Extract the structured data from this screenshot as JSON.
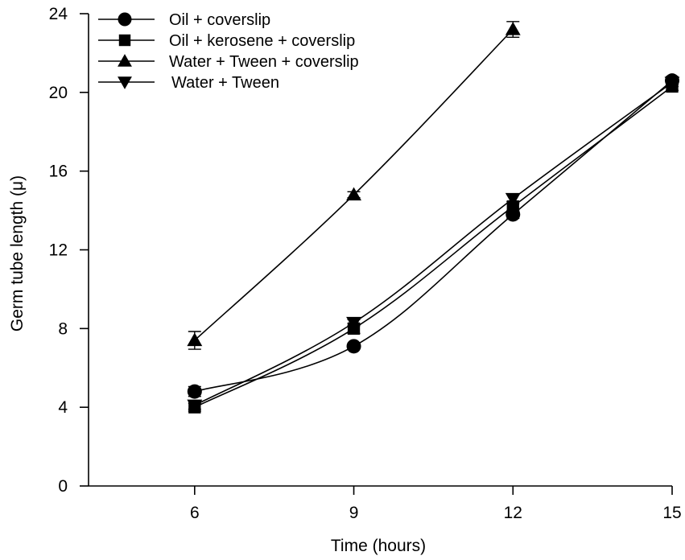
{
  "chart_data": {
    "type": "line",
    "title": "",
    "xlabel": "Time (hours)",
    "ylabel": "Germ tube length (μ)",
    "x": [
      6,
      9,
      12,
      15
    ],
    "xticks": [
      "6",
      "9",
      "12",
      "15"
    ],
    "yticks": [
      "0",
      "4",
      "8",
      "12",
      "16",
      "20",
      "24"
    ],
    "xlim": [
      4,
      15
    ],
    "ylim": [
      0,
      24
    ],
    "grid": false,
    "legend_position": "top-left",
    "series": [
      {
        "name": "Oil + coverslip",
        "marker": "circle",
        "x": [
          6,
          9,
          12,
          15
        ],
        "values": [
          4.8,
          7.1,
          13.8,
          20.6
        ],
        "errors": [
          0.25,
          0,
          0.2,
          0.2
        ]
      },
      {
        "name": "Oil + kerosene + coverslip",
        "marker": "square",
        "x": [
          6,
          9,
          12,
          15
        ],
        "values": [
          4.0,
          8.0,
          14.2,
          20.3
        ],
        "errors": [
          0.2,
          0.25,
          0.25,
          0.2
        ]
      },
      {
        "name": "Water + Tween + coverslip",
        "marker": "triangle-up",
        "x": [
          6,
          9,
          12
        ],
        "values": [
          7.4,
          14.8,
          23.2
        ],
        "errors": [
          0.45,
          0.15,
          0.4
        ]
      },
      {
        "name": "Water + Tween",
        "marker": "triangle-down",
        "x": [
          6,
          9,
          12,
          15
        ],
        "values": [
          4.1,
          8.3,
          14.6,
          20.5
        ],
        "errors": [
          0.2,
          0.15,
          0.25,
          0.2
        ]
      }
    ]
  }
}
